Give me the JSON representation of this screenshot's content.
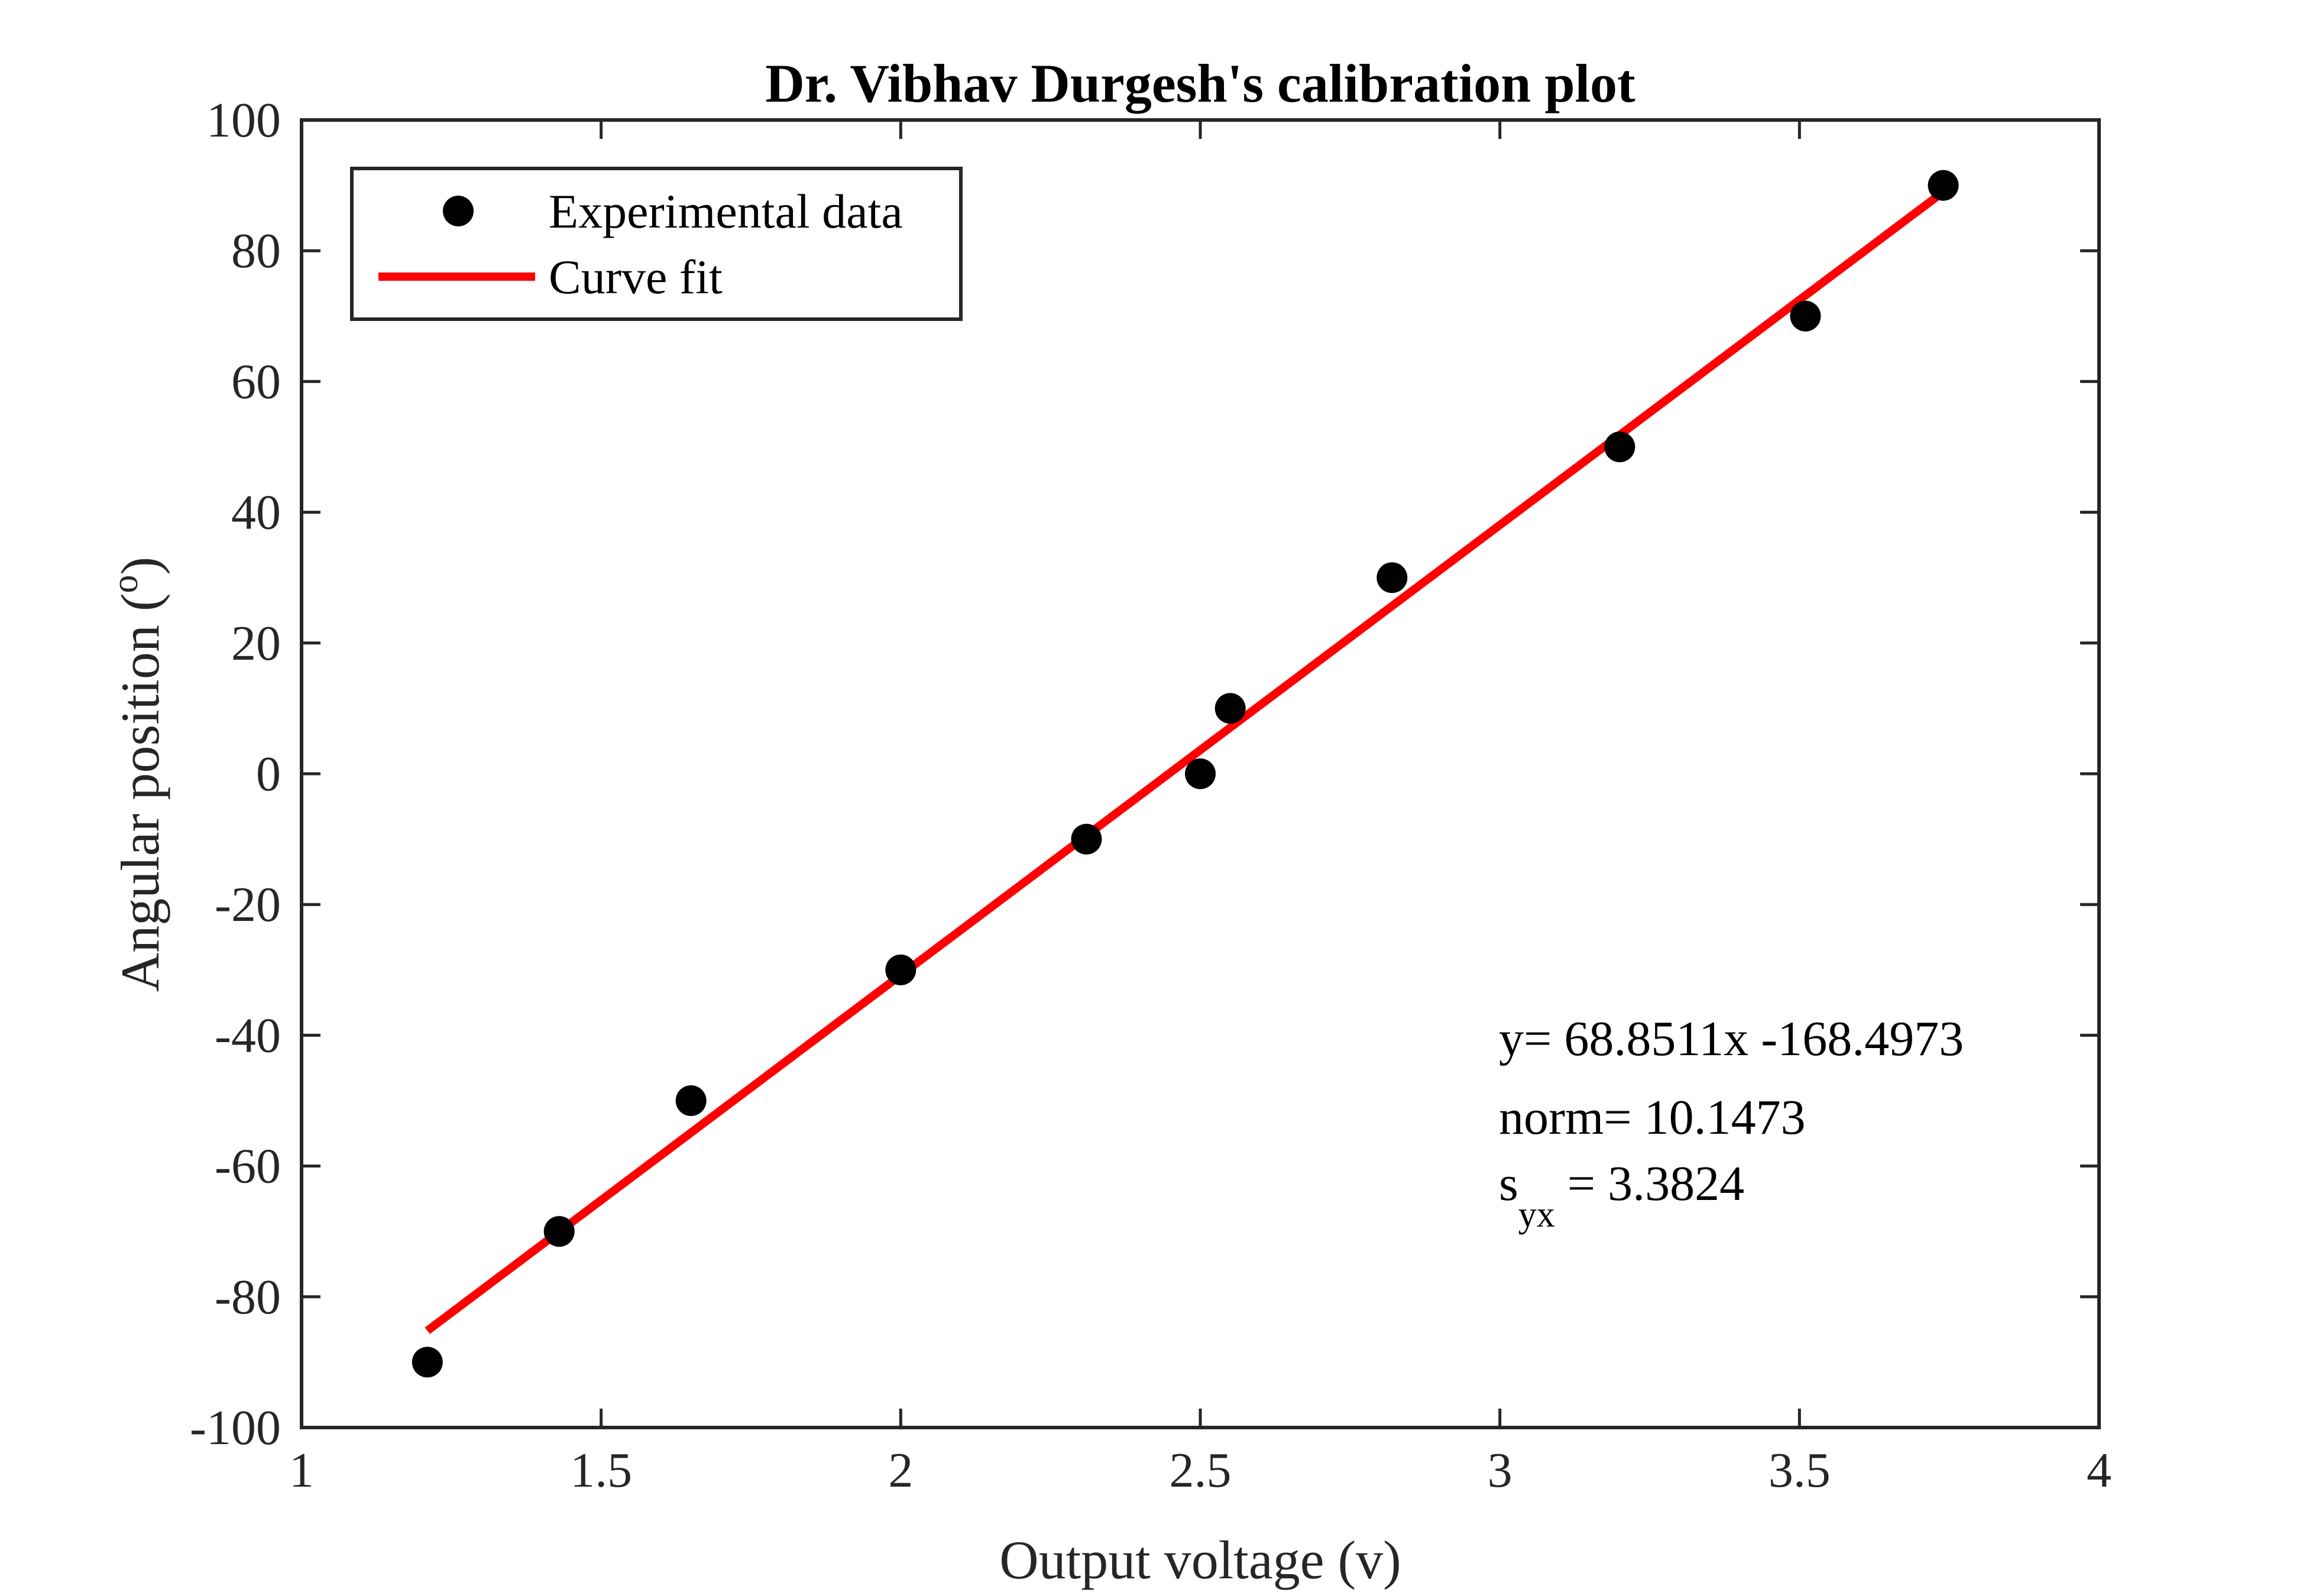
{
  "chart_data": {
    "type": "scatter",
    "title": "Dr. Vibhav Durgesh's calibration plot",
    "xlabel": "Output voltage (v)",
    "ylabel_main": "Angular position (",
    "ylabel_sup": "o",
    "ylabel_end": ")",
    "xlim": [
      1,
      4
    ],
    "ylim": [
      -100,
      100
    ],
    "xticks": [
      1,
      1.5,
      2,
      2.5,
      3,
      3.5,
      4
    ],
    "xtick_labels": [
      "1",
      "1.5",
      "2",
      "2.5",
      "3",
      "3.5",
      "4"
    ],
    "yticks": [
      -100,
      -80,
      -60,
      -40,
      -20,
      0,
      20,
      40,
      60,
      80,
      100
    ],
    "ytick_labels": [
      "-100",
      "-80",
      "-60",
      "-40",
      "-20",
      "0",
      "20",
      "40",
      "60",
      "80",
      "100"
    ],
    "grid": false,
    "legend_position": "top-left",
    "series": [
      {
        "name": "Experimental data",
        "kind": "scatter",
        "color": "#000000",
        "x": [
          1.21,
          1.43,
          1.65,
          2.0,
          2.31,
          2.5,
          2.55,
          2.82,
          3.2,
          3.51,
          3.74
        ],
        "y": [
          -90,
          -70,
          -50,
          -30,
          -10,
          0,
          10,
          30,
          50,
          70,
          90
        ]
      },
      {
        "name": "Curve fit",
        "kind": "line",
        "color": "#ff0000",
        "x": [
          1.21,
          3.74
        ],
        "y": [
          -85.19,
          89.0
        ]
      }
    ],
    "annotations": {
      "equation": "y= 68.8511x -168.4973",
      "norm": "norm= 10.1473",
      "syx_main": "s",
      "syx_sub": "yx",
      "syx_value": " = 3.3824"
    }
  }
}
